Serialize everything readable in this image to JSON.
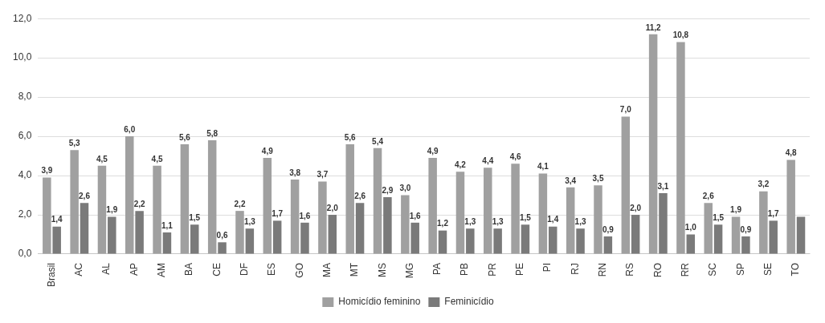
{
  "chart_data": {
    "type": "bar",
    "categories": [
      "Brasil",
      "AC",
      "AL",
      "AP",
      "AM",
      "BA",
      "CE",
      "DF",
      "ES",
      "GO",
      "MA",
      "MT",
      "MS",
      "MG",
      "PA",
      "PB",
      "PR",
      "PE",
      "PI",
      "RJ",
      "RN",
      "RS",
      "RO",
      "RR",
      "SC",
      "SP",
      "SE",
      "TO"
    ],
    "series": [
      {
        "name": "Homicídio feminino",
        "color": "#a0a0a0",
        "values": [
          3.9,
          5.3,
          4.5,
          6.0,
          4.5,
          5.6,
          5.8,
          2.2,
          4.9,
          3.8,
          3.7,
          5.6,
          5.4,
          3.0,
          4.9,
          4.2,
          4.4,
          4.6,
          4.1,
          3.4,
          3.5,
          7.0,
          11.2,
          10.8,
          2.6,
          1.9,
          3.2,
          4.8
        ],
        "value_labels": [
          "3,9",
          "5,3",
          "4,5",
          "6,0",
          "4,5",
          "5,6",
          "5,8",
          "2,2",
          "4,9",
          "3,8",
          "3,7",
          "5,6",
          "5,4",
          "3,0",
          "4,9",
          "4,2",
          "4,4",
          "4,6",
          "4,1",
          "3,4",
          "3,5",
          "7,0",
          "11,2",
          "10,8",
          "2,6",
          "1,9",
          "3,2",
          "4,8"
        ]
      },
      {
        "name": "Feminicídio",
        "color": "#7a7a7a",
        "values": [
          1.4,
          2.6,
          1.9,
          2.2,
          1.1,
          1.5,
          0.6,
          1.3,
          1.7,
          1.6,
          2.0,
          2.6,
          2.9,
          1.6,
          1.2,
          1.3,
          1.3,
          1.5,
          1.4,
          1.3,
          0.9,
          2.0,
          3.1,
          1.0,
          1.5,
          0.9,
          1.7,
          1.9
        ],
        "value_labels": [
          "1,4",
          "2,6",
          "1,9",
          "2,2",
          "1,1",
          "1,5",
          "0,6",
          "1,3",
          "1,7",
          "1,6",
          "2,0",
          "2,6",
          "2,9",
          "1,6",
          "1,2",
          "1,3",
          "1,3",
          "1,5",
          "1,4",
          "1,3",
          "0,9",
          "2,0",
          "3,1",
          "1,0",
          "1,5",
          "0,9",
          "1,7",
          null
        ]
      }
    ],
    "ylim": [
      0,
      12
    ],
    "yticks": [
      {
        "value": 0,
        "label": "0,0"
      },
      {
        "value": 2,
        "label": "2,0"
      },
      {
        "value": 4,
        "label": "4,0"
      },
      {
        "value": 6,
        "label": "6,0"
      },
      {
        "value": 8,
        "label": "8,0"
      },
      {
        "value": 10,
        "label": "10,0"
      },
      {
        "value": 12,
        "label": "12,0"
      }
    ],
    "grid": "y",
    "legend": "bottom"
  }
}
